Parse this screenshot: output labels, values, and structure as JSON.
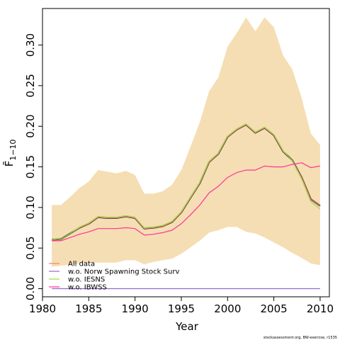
{
  "chart_data": {
    "type": "line",
    "xlabel": "Year",
    "ylabel": "F̄",
    "ylabel_sub": "1−10",
    "xlim": [
      1980,
      2011
    ],
    "ylim": [
      -0.01,
      0.345
    ],
    "xticks": [
      1980,
      1985,
      1990,
      1995,
      2000,
      2005,
      2010
    ],
    "xtick_labels": [
      "1980",
      "1985",
      "1990",
      "1995",
      "2000",
      "2005",
      "2010"
    ],
    "yticks": [
      0.0,
      0.05,
      0.1,
      0.15,
      0.2,
      0.25,
      0.3
    ],
    "ytick_labels": [
      "0.00",
      "0.05",
      "0.10",
      "0.15",
      "0.20",
      "0.25",
      "0.30"
    ],
    "band": {
      "color": "#f5deb3",
      "x": [
        1981,
        1982,
        1983,
        1984,
        1985,
        1986,
        1987,
        1988,
        1989,
        1990,
        1991,
        1992,
        1993,
        1994,
        1995,
        1996,
        1997,
        1998,
        1999,
        2000,
        2001,
        2002,
        2003,
        2004,
        2005,
        2006,
        2007,
        2008,
        2009,
        2010
      ],
      "upper": [
        0.103,
        0.103,
        0.113,
        0.124,
        0.132,
        0.146,
        0.144,
        0.142,
        0.145,
        0.14,
        0.117,
        0.117,
        0.12,
        0.128,
        0.146,
        0.175,
        0.205,
        0.243,
        0.26,
        0.298,
        0.315,
        0.334,
        0.317,
        0.334,
        0.322,
        0.287,
        0.27,
        0.235,
        0.191,
        0.177
      ],
      "lower": [
        0.027,
        0.028,
        0.03,
        0.031,
        0.032,
        0.032,
        0.032,
        0.032,
        0.035,
        0.035,
        0.03,
        0.033,
        0.035,
        0.037,
        0.043,
        0.051,
        0.059,
        0.069,
        0.072,
        0.076,
        0.076,
        0.07,
        0.068,
        0.063,
        0.057,
        0.051,
        0.044,
        0.038,
        0.031,
        0.029
      ]
    },
    "x": [
      1981,
      1982,
      1983,
      1984,
      1985,
      1986,
      1987,
      1988,
      1989,
      1990,
      1991,
      1992,
      1993,
      1994,
      1995,
      1996,
      1997,
      1998,
      1999,
      2000,
      2001,
      2002,
      2003,
      2004,
      2005,
      2006,
      2007,
      2008,
      2009,
      2010
    ],
    "series": [
      {
        "name": "All data",
        "color": "#000000",
        "width": 2.2,
        "in_legend": false,
        "values": [
          0.06,
          0.061,
          0.068,
          0.075,
          0.08,
          0.088,
          0.087,
          0.087,
          0.089,
          0.087,
          0.074,
          0.075,
          0.077,
          0.082,
          0.094,
          0.112,
          0.13,
          0.156,
          0.166,
          0.187,
          0.196,
          0.202,
          0.192,
          0.198,
          0.189,
          0.169,
          0.158,
          0.137,
          0.11,
          0.102
        ]
      },
      {
        "name": "All data",
        "color": "#f08080",
        "width": 1.2,
        "in_legend": true,
        "values": [
          0.06,
          0.061,
          0.068,
          0.075,
          0.08,
          0.088,
          0.087,
          0.087,
          0.089,
          0.087,
          0.074,
          0.075,
          0.077,
          0.082,
          0.094,
          0.112,
          0.13,
          0.156,
          0.166,
          0.187,
          0.196,
          0.202,
          0.192,
          0.198,
          0.189,
          0.169,
          0.158,
          0.137,
          0.11,
          0.102
        ]
      },
      {
        "name": "w.o. Norw Spawning Stock Surv",
        "color": "#9966cc",
        "width": 1.2,
        "in_legend": true,
        "values": [
          0,
          0,
          0,
          0,
          0,
          0,
          0,
          0,
          0,
          0,
          0,
          0,
          0,
          0,
          0,
          0,
          0,
          0,
          0,
          0,
          0,
          0,
          0,
          0,
          0,
          0,
          0,
          0,
          0,
          0
        ]
      },
      {
        "name": "w.o. IESNS",
        "color": "#99dd44",
        "width": 1.2,
        "in_legend": true,
        "values": [
          0.06,
          0.061,
          0.068,
          0.076,
          0.081,
          0.089,
          0.088,
          0.088,
          0.09,
          0.088,
          0.075,
          0.076,
          0.078,
          0.083,
          0.095,
          0.113,
          0.131,
          0.157,
          0.167,
          0.188,
          0.197,
          0.203,
          0.193,
          0.199,
          0.19,
          0.17,
          0.157,
          0.135,
          0.107,
          0.098
        ]
      },
      {
        "name": "w.o. IBWSS",
        "color": "#ff3399",
        "width": 1.2,
        "in_legend": true,
        "values": [
          0.059,
          0.059,
          0.063,
          0.067,
          0.07,
          0.074,
          0.074,
          0.074,
          0.075,
          0.074,
          0.066,
          0.067,
          0.069,
          0.072,
          0.08,
          0.091,
          0.103,
          0.118,
          0.126,
          0.137,
          0.143,
          0.146,
          0.146,
          0.151,
          0.15,
          0.15,
          0.153,
          0.155,
          0.149,
          0.151
        ]
      }
    ],
    "legend_position": "bottom-left"
  },
  "footer": "stockassessment.org, BW-exercise, r1535"
}
